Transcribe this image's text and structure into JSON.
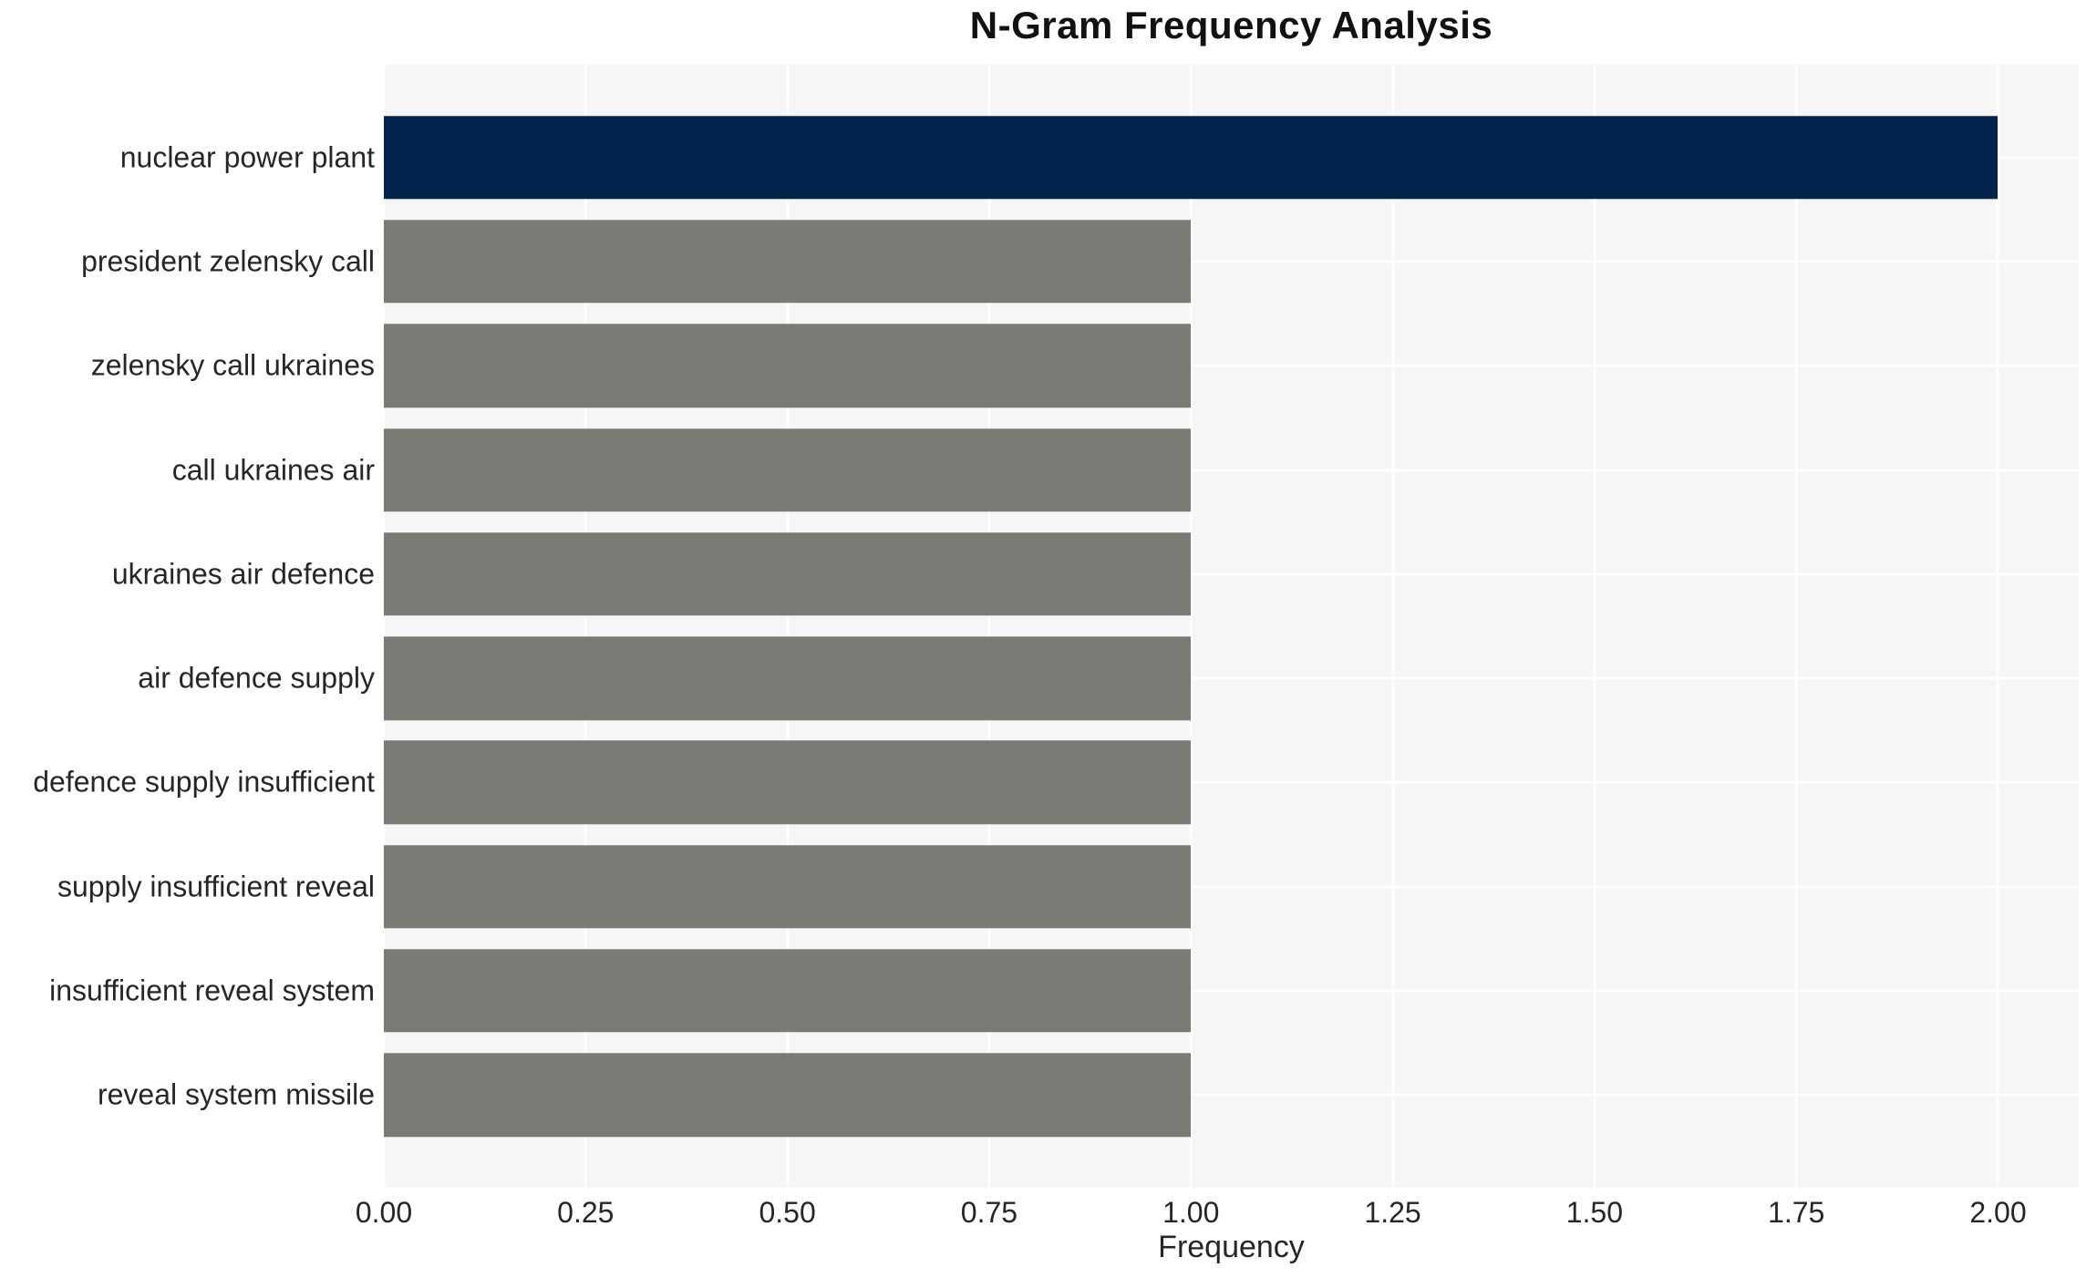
{
  "chart_data": {
    "type": "bar",
    "orientation": "horizontal",
    "title": "N-Gram Frequency Analysis",
    "xlabel": "Frequency",
    "ylabel": "",
    "categories": [
      "nuclear power plant",
      "president zelensky call",
      "zelensky call ukraines",
      "call ukraines air",
      "ukraines air defence",
      "air defence supply",
      "defence supply insufficient",
      "supply insufficient reveal",
      "insufficient reveal system",
      "reveal system missile"
    ],
    "values": [
      2,
      1,
      1,
      1,
      1,
      1,
      1,
      1,
      1,
      1
    ],
    "highlight_index": 0,
    "xlim": [
      0,
      2.1
    ],
    "xticks": [
      0,
      0.25,
      0.5,
      0.75,
      1.0,
      1.25,
      1.5,
      1.75,
      2.0
    ],
    "xtick_labels": [
      "0.00",
      "0.25",
      "0.50",
      "0.75",
      "1.00",
      "1.25",
      "1.50",
      "1.75",
      "2.00"
    ],
    "grid": true,
    "legend": false,
    "colors": {
      "highlight_bar": "#02234c",
      "bar": "#7b7a75",
      "panel_background": "#f7f6f6",
      "gridline": "#ffffff",
      "tick_text": "#262626",
      "title_text": "#111111"
    }
  }
}
